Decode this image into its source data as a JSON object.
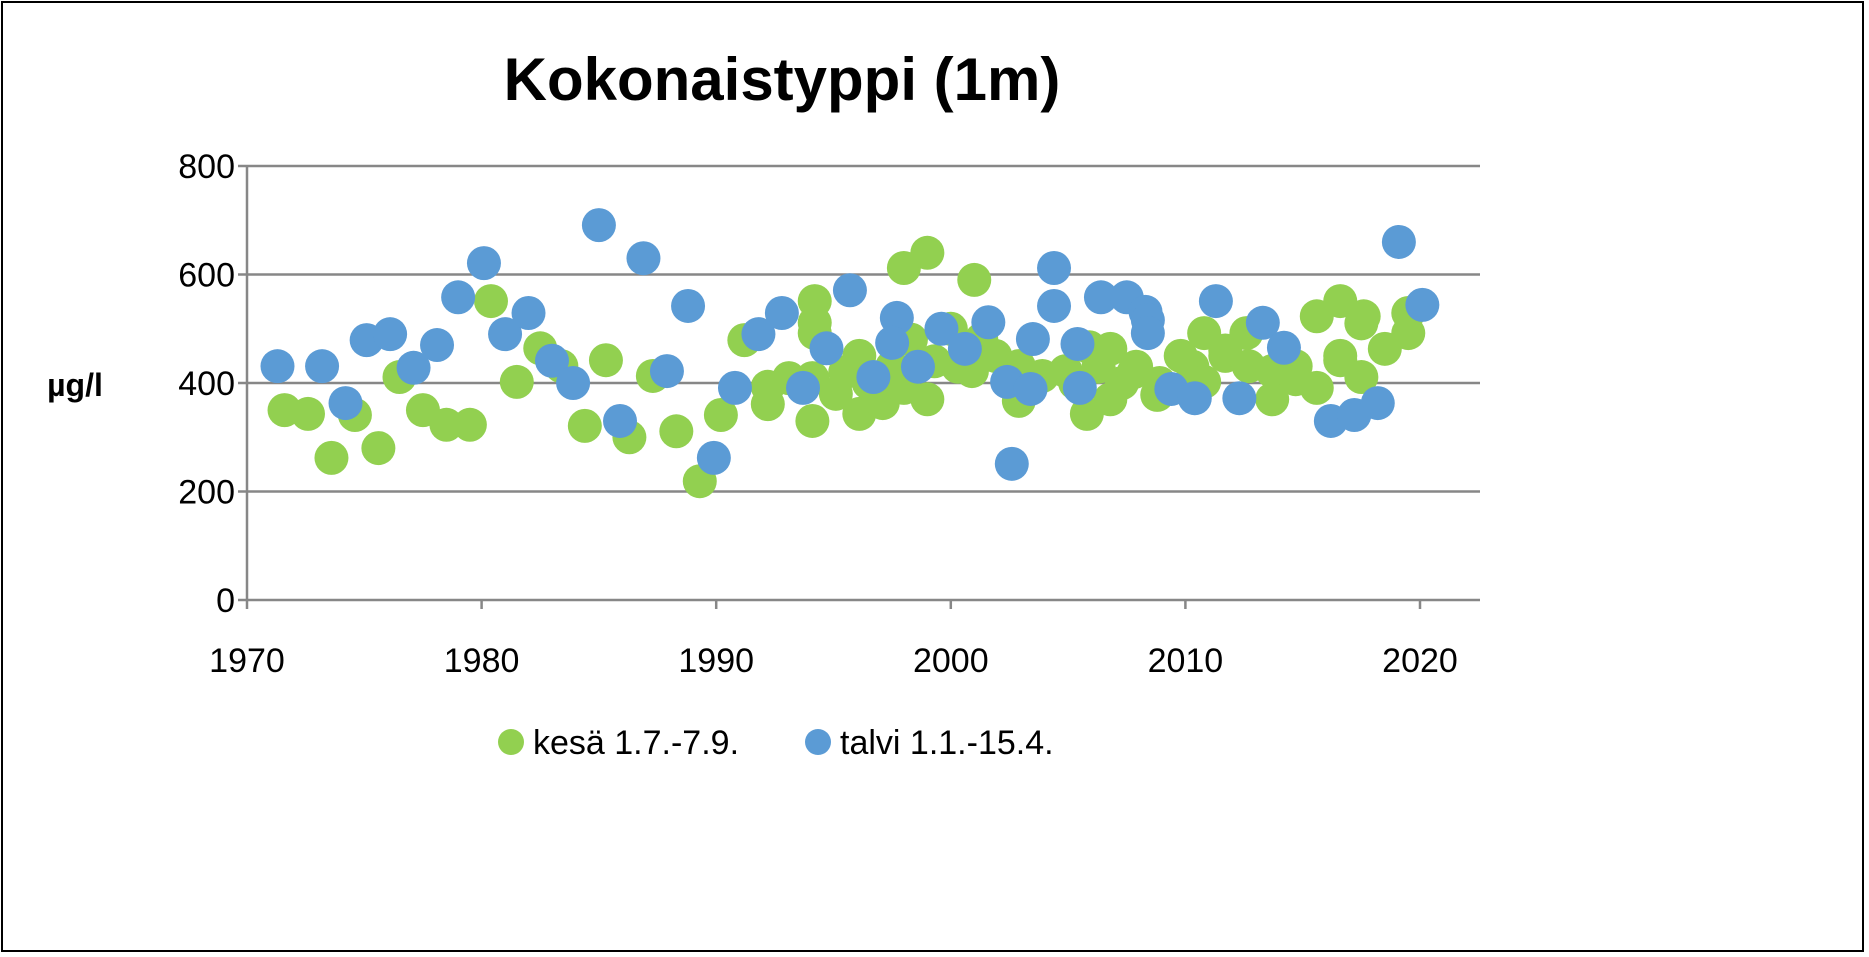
{
  "chart_data": {
    "type": "scatter",
    "title": "Kokonaistyppi (1m)",
    "xlabel": "",
    "ylabel": "µg/l",
    "xlim": [
      1970,
      2023
    ],
    "ylim": [
      0,
      800
    ],
    "xticks": [
      1970,
      1980,
      1990,
      2000,
      2010,
      2020
    ],
    "yticks": [
      0,
      200,
      400,
      600,
      800
    ],
    "grid": true,
    "legend_position": "bottom",
    "series": [
      {
        "name": "kesä 1.7.-7.9.",
        "color": "#92D050",
        "points": [
          [
            1971.6,
            350
          ],
          [
            1972.6,
            343
          ],
          [
            1973.6,
            262
          ],
          [
            1974.6,
            341
          ],
          [
            1975.6,
            280
          ],
          [
            1976.5,
            411
          ],
          [
            1977.5,
            350
          ],
          [
            1978.5,
            323
          ],
          [
            1979.5,
            323
          ],
          [
            1980.4,
            551
          ],
          [
            1981.5,
            402
          ],
          [
            1982.5,
            464
          ],
          [
            1983.4,
            431
          ],
          [
            1984.4,
            321
          ],
          [
            1985.3,
            442
          ],
          [
            1986.3,
            300
          ],
          [
            1987.3,
            413
          ],
          [
            1988.3,
            311
          ],
          [
            1989.3,
            219
          ],
          [
            1990.2,
            341
          ],
          [
            1991.2,
            479
          ],
          [
            1992.2,
            393
          ],
          [
            1992.2,
            361
          ],
          [
            1993.1,
            409
          ],
          [
            1994.2,
            551
          ],
          [
            1994.2,
            511
          ],
          [
            1994.2,
            492
          ],
          [
            1994.1,
            330
          ],
          [
            1994.1,
            409
          ],
          [
            1995.1,
            380
          ],
          [
            1995.5,
            420
          ],
          [
            1996.1,
            450
          ],
          [
            1996.1,
            343
          ],
          [
            1996.5,
            400
          ],
          [
            1997.1,
            363
          ],
          [
            1997.5,
            430
          ],
          [
            1998.0,
            612
          ],
          [
            1998.0,
            391
          ],
          [
            1998.3,
            480
          ],
          [
            1999.0,
            640
          ],
          [
            1999.0,
            370
          ],
          [
            1999.3,
            440
          ],
          [
            2000.0,
            500
          ],
          [
            2000.3,
            430
          ],
          [
            2001.0,
            590
          ],
          [
            2000.9,
            422
          ],
          [
            2001.3,
            480
          ],
          [
            2001.9,
            450
          ],
          [
            2002.9,
            367
          ],
          [
            2002.9,
            431
          ],
          [
            2003.9,
            413
          ],
          [
            2004.9,
            422
          ],
          [
            2005.3,
            400
          ],
          [
            2005.8,
            343
          ],
          [
            2005.9,
            466
          ],
          [
            2006.3,
            430
          ],
          [
            2006.8,
            370
          ],
          [
            2006.8,
            463
          ],
          [
            2007.3,
            400
          ],
          [
            2007.8,
            420
          ],
          [
            2007.9,
            430
          ],
          [
            2008.8,
            378
          ],
          [
            2008.9,
            400
          ],
          [
            2009.8,
            450
          ],
          [
            2010.3,
            430
          ],
          [
            2010.8,
            492
          ],
          [
            2010.8,
            402
          ],
          [
            2011.7,
            450
          ],
          [
            2011.7,
            460
          ],
          [
            2012.6,
            492
          ],
          [
            2012.7,
            431
          ],
          [
            2013.7,
            422
          ],
          [
            2013.7,
            370
          ],
          [
            2014.7,
            431
          ],
          [
            2014.7,
            407
          ],
          [
            2015.6,
            523
          ],
          [
            2015.6,
            391
          ],
          [
            2016.6,
            551
          ],
          [
            2016.6,
            450
          ],
          [
            2016.6,
            442
          ],
          [
            2017.6,
            523
          ],
          [
            2017.5,
            510
          ],
          [
            2017.5,
            411
          ],
          [
            2018.5,
            463
          ],
          [
            2019.5,
            529
          ],
          [
            2019.5,
            492
          ]
        ]
      },
      {
        "name": "talvi 1.1.-15.4.",
        "color": "#5B9BD5",
        "points": [
          [
            1971.3,
            431
          ],
          [
            1973.2,
            431
          ],
          [
            1974.2,
            363
          ],
          [
            1975.1,
            479
          ],
          [
            1976.1,
            490
          ],
          [
            1977.1,
            428
          ],
          [
            1978.1,
            470
          ],
          [
            1979.0,
            558
          ],
          [
            1980.1,
            621
          ],
          [
            1981.0,
            490
          ],
          [
            1982.0,
            529
          ],
          [
            1983.0,
            441
          ],
          [
            1983.9,
            400
          ],
          [
            1985.0,
            691
          ],
          [
            1985.9,
            330
          ],
          [
            1986.9,
            630
          ],
          [
            1987.9,
            422
          ],
          [
            1988.8,
            542
          ],
          [
            1989.9,
            262
          ],
          [
            1990.8,
            391
          ],
          [
            1991.8,
            490
          ],
          [
            1992.8,
            529
          ],
          [
            1993.7,
            391
          ],
          [
            1994.7,
            464
          ],
          [
            1995.7,
            571
          ],
          [
            1996.7,
            411
          ],
          [
            1997.7,
            520
          ],
          [
            1997.5,
            474
          ],
          [
            1998.6,
            430
          ],
          [
            1999.6,
            500
          ],
          [
            2000.6,
            463
          ],
          [
            2001.6,
            512
          ],
          [
            2002.4,
            402
          ],
          [
            2002.6,
            251
          ],
          [
            2003.4,
            389
          ],
          [
            2003.5,
            481
          ],
          [
            2004.4,
            612
          ],
          [
            2004.4,
            542
          ],
          [
            2005.4,
            472
          ],
          [
            2005.5,
            391
          ],
          [
            2006.4,
            558
          ],
          [
            2007.5,
            558
          ],
          [
            2008.3,
            531
          ],
          [
            2008.4,
            516
          ],
          [
            2008.4,
            492
          ],
          [
            2009.4,
            389
          ],
          [
            2010.4,
            372
          ],
          [
            2011.3,
            551
          ],
          [
            2012.3,
            372
          ],
          [
            2013.3,
            511
          ],
          [
            2014.2,
            465
          ],
          [
            2016.2,
            330
          ],
          [
            2017.2,
            341
          ],
          [
            2018.2,
            363
          ],
          [
            2019.1,
            660
          ],
          [
            2020.1,
            544
          ]
        ]
      }
    ]
  }
}
